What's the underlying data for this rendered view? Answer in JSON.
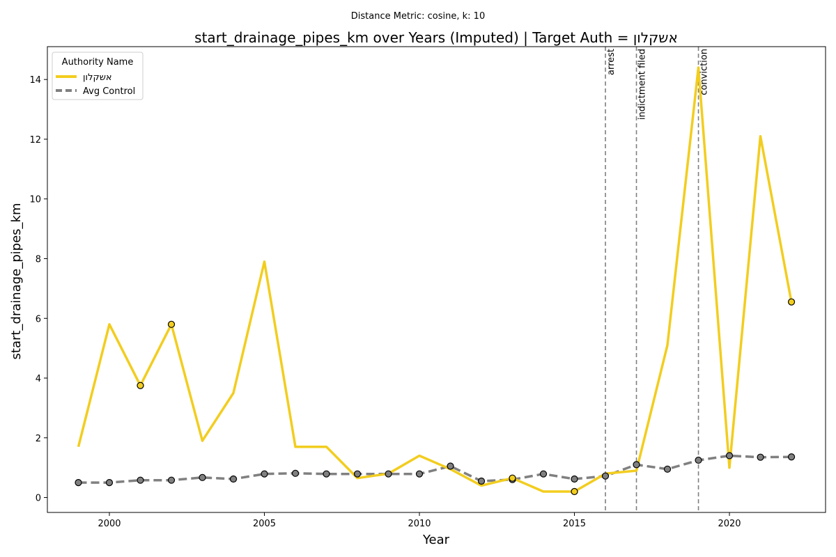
{
  "chart_data": {
    "type": "line",
    "suptitle": "Distance Metric: cosine, k: 10",
    "title": "start_drainage_pipes_km over Years (Imputed) | Target Auth = אשקלון",
    "xlabel": "Year",
    "ylabel": "start_drainage_pipes_km",
    "xlim": [
      1998.0,
      2023.1
    ],
    "ylim": [
      -0.5,
      15.1
    ],
    "xticks": [
      2000,
      2005,
      2010,
      2015,
      2020
    ],
    "yticks": [
      0,
      2,
      4,
      6,
      8,
      10,
      12,
      14
    ],
    "grid": false,
    "legend": {
      "title": "Authority Name",
      "position": "top-left"
    },
    "x": [
      1999,
      2000,
      2001,
      2002,
      2003,
      2004,
      2005,
      2006,
      2007,
      2008,
      2009,
      2010,
      2011,
      2012,
      2013,
      2014,
      2015,
      2016,
      2017,
      2018,
      2019,
      2020,
      2021,
      2022
    ],
    "series": [
      {
        "name": "אשקלון",
        "color": "#f2cd1f",
        "style": "solid",
        "values": [
          1.7,
          5.8,
          3.75,
          5.8,
          1.9,
          3.5,
          7.9,
          1.7,
          1.7,
          0.65,
          0.8,
          1.4,
          0.95,
          0.4,
          0.65,
          0.2,
          0.2,
          0.8,
          0.9,
          5.1,
          14.4,
          1.0,
          12.1,
          6.55
        ],
        "marker_years": [
          2001,
          2002,
          2013,
          2015,
          2022
        ]
      },
      {
        "name": "Avg Control",
        "color": "#808080",
        "style": "dashed",
        "values": [
          0.5,
          0.5,
          0.58,
          0.58,
          0.67,
          0.62,
          0.79,
          0.81,
          0.79,
          0.79,
          0.79,
          0.79,
          1.05,
          0.55,
          0.6,
          0.79,
          0.62,
          0.72,
          1.1,
          0.95,
          1.25,
          1.4,
          1.35,
          1.36
        ],
        "marker_years": [
          1999,
          2000,
          2001,
          2002,
          2003,
          2004,
          2005,
          2006,
          2007,
          2008,
          2009,
          2010,
          2011,
          2012,
          2013,
          2014,
          2015,
          2016,
          2017,
          2018,
          2019,
          2020,
          2021,
          2022
        ]
      }
    ],
    "events": [
      {
        "year": 2016,
        "label": "arrest"
      },
      {
        "year": 2017,
        "label": "indictment filed"
      },
      {
        "year": 2019,
        "label": "conviction"
      }
    ]
  }
}
